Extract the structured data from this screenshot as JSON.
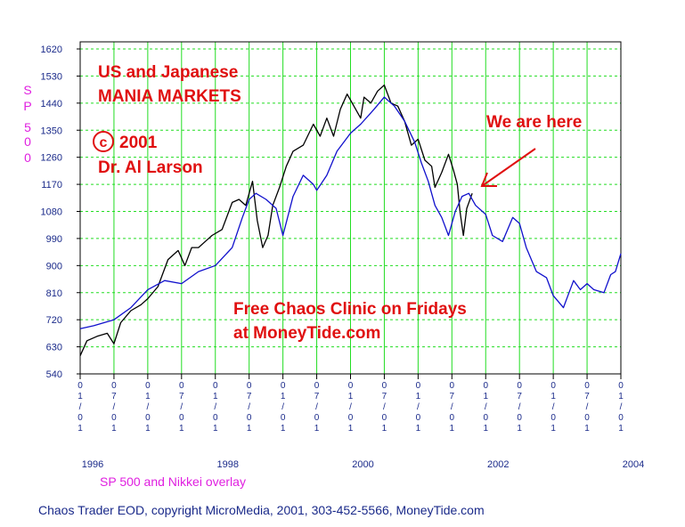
{
  "chart_data": {
    "type": "line",
    "ylabel_chars": [
      "S",
      "P",
      "5",
      "0",
      "0"
    ],
    "yticks": [
      "1620",
      "1530",
      "1440",
      "1350",
      "1260",
      "1170",
      "1080",
      "990",
      "900",
      "810",
      "720",
      "630",
      "540"
    ],
    "ylim": [
      540,
      1620
    ],
    "xlim": [
      1996.0,
      2004.0
    ],
    "xtick_labels": [
      "01/01",
      "07/01",
      "01/01",
      "07/01",
      "01/01",
      "07/01",
      "01/01",
      "07/01",
      "01/01",
      "07/01",
      "01/01",
      "07/01",
      "01/01",
      "07/01",
      "01/01",
      "07/01",
      "01/01"
    ],
    "year_labels": [
      "1996",
      "1998",
      "2000",
      "2002",
      "2004"
    ],
    "annotations": {
      "title_line1": "US and Japanese",
      "title_line2": "MANIA MARKETS",
      "copyright_symbol": "c",
      "copyright_year": "2001",
      "author": "Dr. Al Larson",
      "we_are_here": "We are here",
      "clinic_line1": "Free Chaos Clinic on Fridays",
      "clinic_line2": "at MoneyTide.com"
    },
    "overlay_label": "SP 500 and Nikkei overlay",
    "footer": "Chaos Trader EOD, copyright MicroMedia, 2001, 303-452-5566, MoneyTide.com",
    "grid": true,
    "series": [
      {
        "color": "#000000",
        "x": [
          1996.0,
          1996.1,
          1996.25,
          1996.4,
          1996.5,
          1996.6,
          1996.75,
          1996.9,
          1997.0,
          1997.15,
          1997.3,
          1997.45,
          1997.55,
          1997.65,
          1997.75,
          1997.85,
          1997.95,
          1998.1,
          1998.25,
          1998.35,
          1998.45,
          1998.55,
          1998.62,
          1998.7,
          1998.78,
          1998.85,
          1998.95,
          1999.05,
          1999.15,
          1999.3,
          1999.45,
          1999.55,
          1999.65,
          1999.75,
          1999.85,
          1999.95,
          2000.05,
          2000.15,
          2000.2,
          2000.3,
          2000.4,
          2000.5,
          2000.6,
          2000.7,
          2000.8,
          2000.9,
          2001.0,
          2001.1,
          2001.2,
          2001.25,
          2001.35,
          2001.45,
          2001.52,
          2001.58,
          2001.62,
          2001.67,
          2001.72,
          2001.8
        ],
        "y": [
          600,
          650,
          665,
          675,
          640,
          710,
          750,
          770,
          790,
          830,
          920,
          950,
          900,
          960,
          960,
          980,
          1000,
          1020,
          1110,
          1120,
          1100,
          1180,
          1050,
          960,
          1000,
          1100,
          1160,
          1230,
          1280,
          1300,
          1370,
          1330,
          1390,
          1330,
          1420,
          1470,
          1430,
          1390,
          1460,
          1440,
          1480,
          1500,
          1440,
          1430,
          1380,
          1300,
          1320,
          1250,
          1230,
          1160,
          1210,
          1270,
          1220,
          1170,
          1080,
          1000,
          1090,
          1140
        ]
      },
      {
        "color": "#1010cc",
        "x": [
          1996.0,
          1996.2,
          1996.5,
          1996.75,
          1997.0,
          1997.25,
          1997.5,
          1997.75,
          1998.0,
          1998.25,
          1998.4,
          1998.5,
          1998.6,
          1998.75,
          1998.9,
          1999.0,
          1999.15,
          1999.3,
          1999.45,
          1999.5,
          1999.65,
          1999.8,
          2000.0,
          2000.15,
          2000.35,
          2000.5,
          2000.65,
          2000.8,
          2000.95,
          2001.05,
          2001.15,
          2001.25,
          2001.35,
          2001.45,
          2001.55,
          2001.65,
          2001.75,
          2001.85,
          2002.0,
          2002.1,
          2002.25,
          2002.4,
          2002.5,
          2002.6,
          2002.75,
          2002.9,
          2003.0,
          2003.15,
          2003.3,
          2003.4,
          2003.5,
          2003.6,
          2003.75,
          2003.85,
          2003.92,
          2004.0
        ],
        "y": [
          690,
          700,
          720,
          760,
          820,
          850,
          840,
          880,
          900,
          960,
          1060,
          1120,
          1140,
          1120,
          1090,
          1000,
          1130,
          1200,
          1170,
          1150,
          1200,
          1280,
          1340,
          1370,
          1420,
          1460,
          1430,
          1380,
          1310,
          1240,
          1180,
          1100,
          1060,
          1000,
          1080,
          1130,
          1140,
          1100,
          1070,
          1000,
          980,
          1060,
          1040,
          960,
          880,
          860,
          800,
          760,
          850,
          820,
          840,
          820,
          810,
          870,
          880,
          940
        ]
      }
    ]
  }
}
